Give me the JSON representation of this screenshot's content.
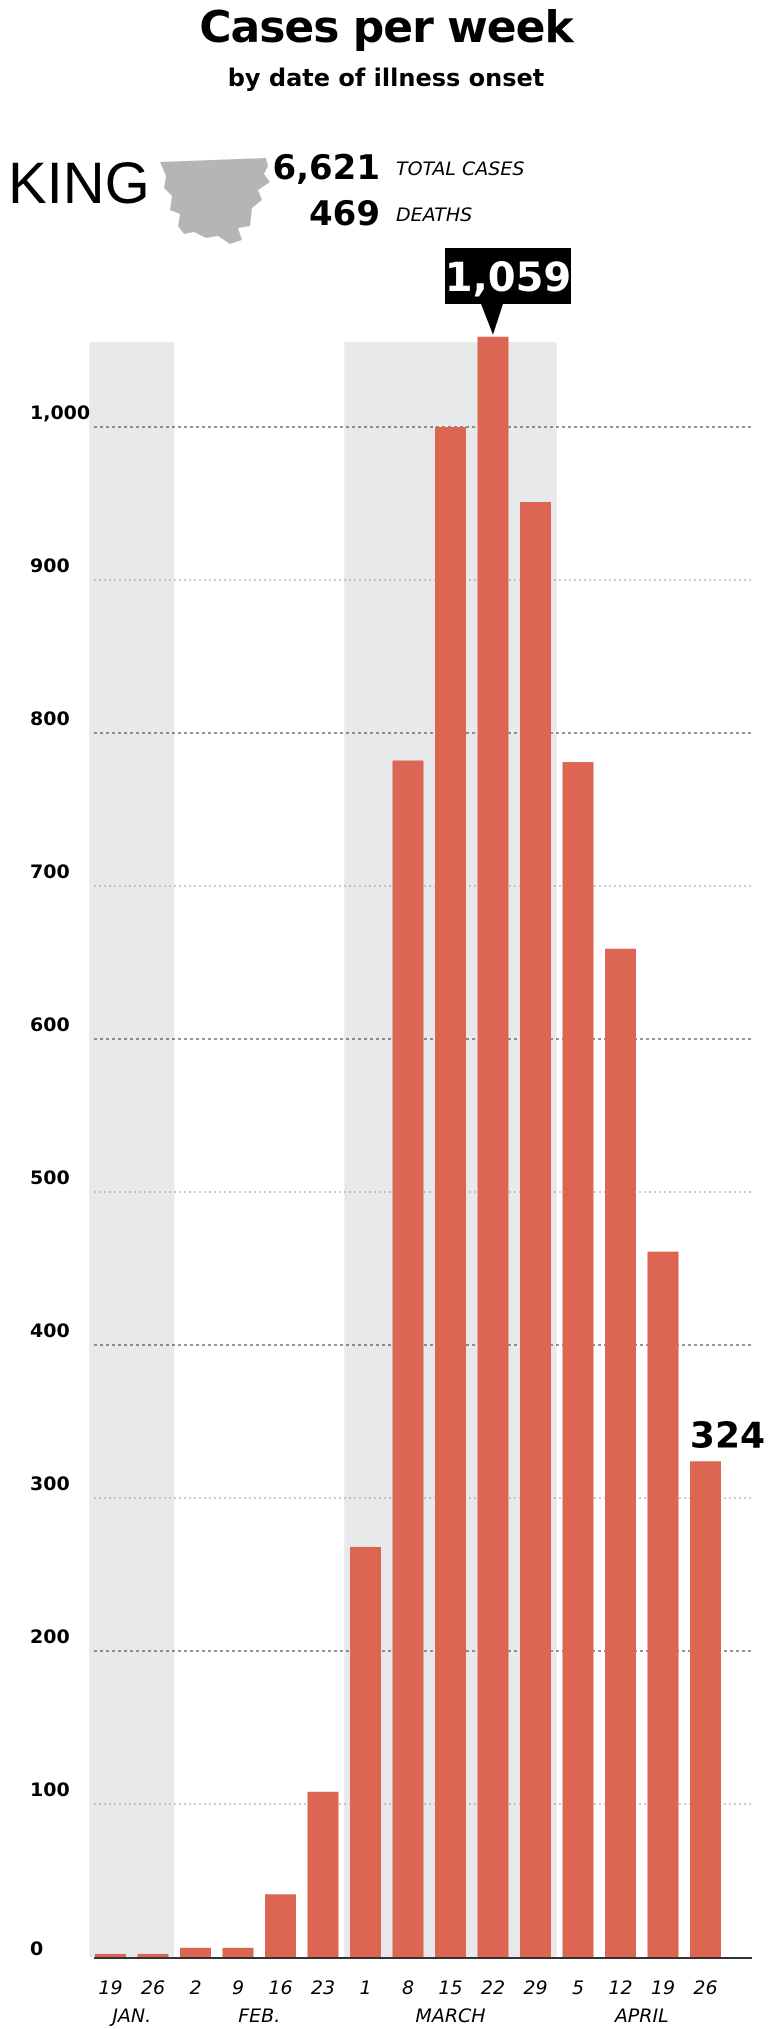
{
  "header": {
    "title": "Cases per week",
    "subtitle": "by date of illness onset"
  },
  "county": {
    "name": "KING",
    "total_cases": "6,621",
    "total_cases_label": "TOTAL CASES",
    "deaths": "469",
    "deaths_label": "DEATHS"
  },
  "colors": {
    "bar": "#dd6652",
    "shade": "#e8e9eb",
    "map": "#b4b5b7",
    "callout_bg": "#000000",
    "callout_text": "#ffffff"
  },
  "chart_data": {
    "type": "bar",
    "categories": [
      "19",
      "26",
      "2",
      "9",
      "16",
      "23",
      "1",
      "8",
      "15",
      "22",
      "29",
      "5",
      "12",
      "19",
      "26"
    ],
    "months": [
      {
        "label": "JAN.",
        "from": 0,
        "to": 1
      },
      {
        "label": "FEB.",
        "from": 2,
        "to": 5
      },
      {
        "label": "MARCH",
        "from": 6,
        "to": 10
      },
      {
        "label": "APRIL",
        "from": 11,
        "to": 14
      }
    ],
    "values": [
      2,
      2,
      6,
      6,
      41,
      108,
      268,
      782,
      1000,
      1059,
      951,
      781,
      659,
      461,
      324
    ],
    "yticks": [
      0,
      100,
      200,
      300,
      400,
      500,
      600,
      700,
      800,
      900,
      1000
    ],
    "ytick_labels": [
      "0",
      "100",
      "200",
      "300",
      "400",
      "500",
      "600",
      "700",
      "800",
      "900",
      "1,000"
    ],
    "ylim": [
      0,
      1059
    ],
    "grid": true,
    "shaded_ranges": [
      [
        0,
        1
      ],
      [
        6,
        10
      ]
    ],
    "callouts": [
      {
        "index": 9,
        "label": "1,059",
        "style": "box"
      },
      {
        "index": 14,
        "label": "324",
        "style": "plain"
      }
    ]
  }
}
